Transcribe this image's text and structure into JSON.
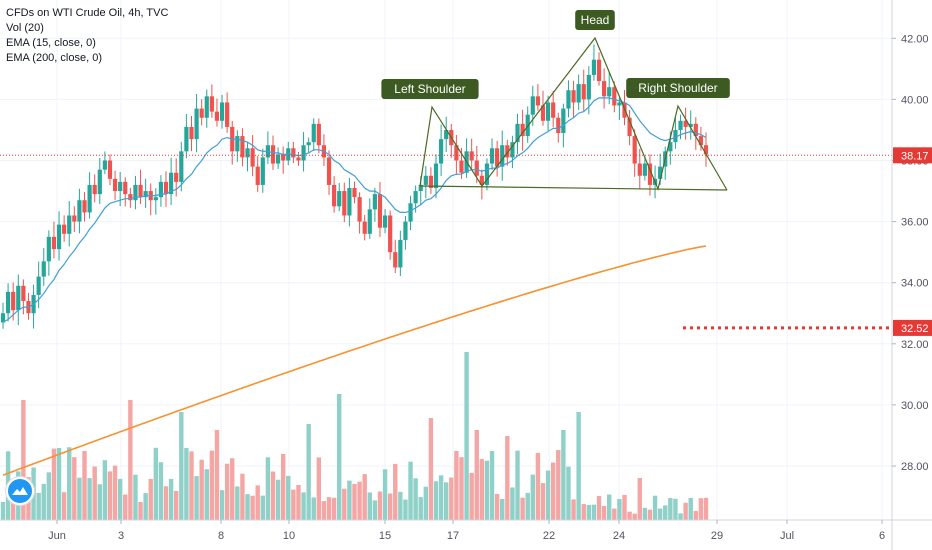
{
  "legend": {
    "title": "CFDs on WTI Crude Oil, 4h, TVC",
    "vol": "Vol (20)",
    "ema_fast": "EMA (15, close, 0)",
    "ema_slow": "EMA (200, close, 0)"
  },
  "colors": {
    "up": "#26a69a",
    "down": "#ef5350",
    "vol_up": "#8fd0c8",
    "vol_down": "#f4a6a4",
    "ema_fast": "#3f9fd8",
    "ema_slow": "#f7922f",
    "pattern": "#4a6b25",
    "pattern_label_bg": "#3d5a22",
    "price_line": "#e53935"
  },
  "chart_data": {
    "type": "candlestick",
    "symbol": "CFDs on WTI Crude Oil",
    "interval": "4h",
    "x_tick_labels": [
      "Jun",
      "3",
      "8",
      "10",
      "15",
      "17",
      "22",
      "24",
      "29",
      "Jul",
      "6"
    ],
    "y_tick_labels": [
      "28.00",
      "30.00",
      "32.00",
      "34.00",
      "36.00",
      "38.00",
      "40.00",
      "42.00"
    ],
    "ylim": [
      26.3,
      43.5
    ],
    "last_price": "38.17",
    "target_price": "32.52",
    "closes": [
      33.0,
      33.7,
      33.1,
      33.9,
      33.4,
      33.0,
      33.6,
      34.2,
      34.7,
      35.5,
      35.1,
      35.9,
      35.6,
      36.2,
      36.0,
      36.7,
      36.3,
      37.2,
      36.9,
      37.7,
      38.0,
      37.4,
      37.0,
      37.3,
      36.9,
      36.7,
      37.2,
      36.8,
      37.0,
      36.7,
      36.8,
      37.3,
      36.9,
      37.6,
      37.3,
      38.3,
      39.1,
      38.7,
      39.7,
      39.4,
      40.1,
      39.6,
      39.3,
      39.9,
      39.1,
      38.3,
      38.8,
      38.1,
      38.4,
      37.8,
      37.2,
      38.1,
      38.5,
      37.9,
      38.2,
      38.0,
      38.4,
      38.1,
      38.0,
      38.5,
      38.6,
      39.2,
      38.5,
      38.1,
      37.2,
      36.5,
      37.0,
      36.2,
      37.1,
      36.8,
      36.0,
      35.6,
      36.4,
      36.9,
      35.8,
      36.2,
      35.0,
      34.5,
      35.4,
      36.0,
      36.6,
      37.0,
      37.2,
      37.5,
      37.1,
      37.9,
      38.7,
      39.0,
      38.5,
      38.0,
      37.6,
      38.3,
      38.0,
      37.5,
      37.2,
      37.9,
      38.4,
      37.8,
      38.5,
      38.1,
      38.6,
      39.2,
      38.8,
      39.5,
      40.1,
      39.8,
      39.3,
      39.9,
      39.4,
      38.9,
      39.7,
      40.3,
      39.9,
      40.5,
      40.0,
      40.8,
      41.3,
      40.6,
      40.1,
      40.4,
      39.8,
      39.9,
      39.4,
      38.8,
      37.9,
      37.5,
      37.9,
      37.2,
      37.4,
      37.8,
      38.3,
      38.6,
      39.0,
      39.3,
      39.1,
      39.2,
      38.8,
      38.5,
      38.2
    ],
    "ema15": [
      32.7,
      32.8,
      32.95,
      33.1,
      33.2,
      33.2,
      33.3,
      33.45,
      33.65,
      33.9,
      34.1,
      34.4,
      34.6,
      34.85,
      35.05,
      35.3,
      35.5,
      35.75,
      35.95,
      36.2,
      36.45,
      36.6,
      36.65,
      36.7,
      36.75,
      36.75,
      36.8,
      36.8,
      36.85,
      36.85,
      36.85,
      36.9,
      36.9,
      37.0,
      37.05,
      37.2,
      37.4,
      37.55,
      37.8,
      38.0,
      38.25,
      38.4,
      38.5,
      38.7,
      38.75,
      38.7,
      38.7,
      38.65,
      38.6,
      38.5,
      38.35,
      38.3,
      38.3,
      38.25,
      38.25,
      38.2,
      38.2,
      38.2,
      38.15,
      38.2,
      38.25,
      38.35,
      38.35,
      38.3,
      38.2,
      38.0,
      37.9,
      37.7,
      37.6,
      37.5,
      37.3,
      37.1,
      37.0,
      37.0,
      36.9,
      36.8,
      36.6,
      36.4,
      36.3,
      36.3,
      36.35,
      36.45,
      36.55,
      36.7,
      36.75,
      36.9,
      37.1,
      37.35,
      37.5,
      37.55,
      37.55,
      37.65,
      37.7,
      37.7,
      37.65,
      37.7,
      37.75,
      37.75,
      37.85,
      37.9,
      38.0,
      38.15,
      38.25,
      38.4,
      38.6,
      38.75,
      38.85,
      38.95,
      39.05,
      39.05,
      39.15,
      39.3,
      39.4,
      39.55,
      39.6,
      39.75,
      39.95,
      40.05,
      40.05,
      40.05,
      40.0,
      39.95,
      39.9,
      39.8,
      39.55,
      39.3,
      39.1,
      38.9,
      38.8,
      38.7,
      38.65,
      38.7,
      38.75,
      38.85,
      38.9,
      38.95,
      38.9,
      38.85,
      38.75
    ],
    "ema200": [
      27.7,
      35.2
    ],
    "volume_max": 1
  },
  "annotations": {
    "left_shoulder": "Left Shoulder",
    "head": "Head",
    "right_shoulder": "Right Shoulder"
  }
}
